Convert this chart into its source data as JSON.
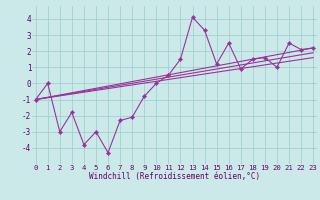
{
  "xlabel": "Windchill (Refroidissement éolien,°C)",
  "x": [
    0,
    1,
    2,
    3,
    4,
    5,
    6,
    7,
    8,
    9,
    10,
    11,
    12,
    13,
    14,
    15,
    16,
    17,
    18,
    19,
    20,
    21,
    22,
    23
  ],
  "y_scatter": [
    -1.0,
    0.0,
    -3.0,
    -1.8,
    -3.8,
    -3.0,
    -4.3,
    -2.3,
    -2.1,
    -0.8,
    0.0,
    0.5,
    1.5,
    4.1,
    3.3,
    1.2,
    2.5,
    0.9,
    1.5,
    1.6,
    1.0,
    2.5,
    2.1,
    2.2
  ],
  "trend_lines": [
    {
      "x": [
        0,
        23
      ],
      "y": [
        -1.0,
        2.2
      ]
    },
    {
      "x": [
        0,
        23
      ],
      "y": [
        -1.0,
        1.9
      ]
    },
    {
      "x": [
        0,
        23
      ],
      "y": [
        -1.0,
        1.6
      ]
    }
  ],
  "background_color": "#cce9e9",
  "grid_color": "#99cccc",
  "line_color": "#993399",
  "ylim": [
    -5.0,
    4.8
  ],
  "xlim": [
    -0.3,
    23.3
  ],
  "yticks": [
    -4,
    -3,
    -2,
    -1,
    0,
    1,
    2,
    3,
    4
  ],
  "xticks": [
    0,
    1,
    2,
    3,
    4,
    5,
    6,
    7,
    8,
    9,
    10,
    11,
    12,
    13,
    14,
    15,
    16,
    17,
    18,
    19,
    20,
    21,
    22,
    23
  ],
  "xlabel_fontsize": 5.5,
  "tick_fontsize": 5.2,
  "marker_size": 2.2,
  "line_width": 0.8
}
